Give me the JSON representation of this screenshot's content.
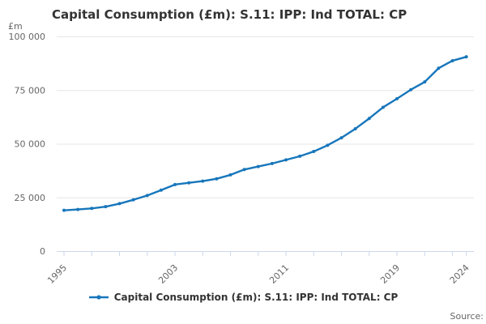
{
  "header": {
    "title": "Capital Consumption (£m): S.11: IPP: Ind TOTAL: CP"
  },
  "chart": {
    "unit_label": "£m",
    "line_color": "#1776bb",
    "grid_color": "#e6e6e6",
    "axis_color": "#ccd6eb",
    "tick_label_color": "#666666",
    "y_ticks": [
      {
        "value": 0,
        "label": "0"
      },
      {
        "value": 25000,
        "label": "25 000"
      },
      {
        "value": 50000,
        "label": "50 000"
      },
      {
        "value": 75000,
        "label": "75 000"
      },
      {
        "value": 100000,
        "label": "100 000"
      }
    ],
    "x_labeled_ticks": [
      1995,
      2003,
      2011,
      2019,
      2024
    ],
    "x_minor_tick_years": [
      1995,
      1997,
      1999,
      2001,
      2003,
      2005,
      2007,
      2009,
      2011,
      2013,
      2015,
      2017,
      2019,
      2021,
      2023,
      2024
    ]
  },
  "chart_data": {
    "type": "line",
    "title": "Capital Consumption (£m): S.11: IPP: Ind TOTAL: CP",
    "xlabel": "",
    "ylabel": "£m",
    "ylim": [
      0,
      100000
    ],
    "xlim": [
      1995,
      2024
    ],
    "grid": true,
    "legend_position": "bottom",
    "x": [
      1995,
      1996,
      1997,
      1998,
      1999,
      2000,
      2001,
      2002,
      2003,
      2004,
      2005,
      2006,
      2007,
      2008,
      2009,
      2010,
      2011,
      2012,
      2013,
      2014,
      2015,
      2016,
      2017,
      2018,
      2019,
      2020,
      2021,
      2022,
      2023,
      2024
    ],
    "series": [
      {
        "name": "Capital Consumption (£m): S.11: IPP: Ind TOTAL: CP",
        "values": [
          19000,
          19400,
          19900,
          20700,
          22100,
          23900,
          25900,
          28400,
          31000,
          31800,
          32600,
          33700,
          35500,
          38000,
          39400,
          40800,
          42500,
          44200,
          46400,
          49300,
          52800,
          57000,
          61800,
          67000,
          71000,
          75200,
          78800,
          85200,
          88700,
          90500
        ]
      }
    ]
  },
  "legend": {
    "label": "Capital Consumption (£m): S.11: IPP: Ind TOTAL: CP"
  },
  "footer": {
    "source_label": "Source:"
  }
}
